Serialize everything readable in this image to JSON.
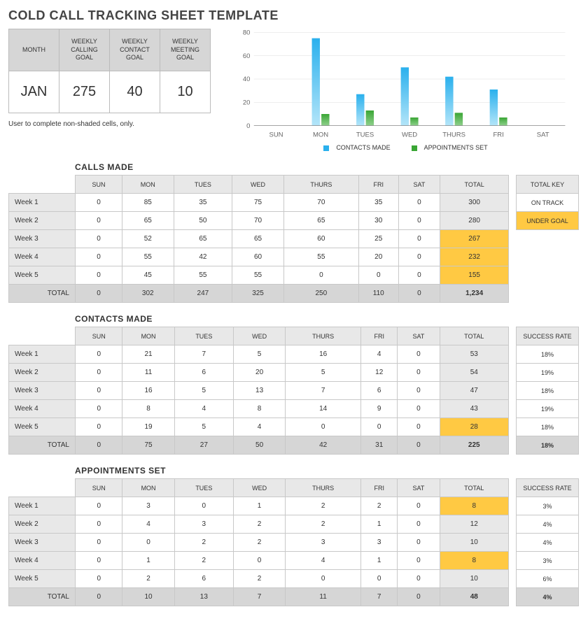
{
  "title": "COLD CALL TRACKING SHEET TEMPLATE",
  "goals": {
    "headers": [
      "MONTH",
      "WEEKLY\nCALLING\nGOAL",
      "WEEKLY\nCONTACT\nGOAL",
      "WEEKLY\nMEETING\nGOAL"
    ],
    "values": [
      "JAN",
      "275",
      "40",
      "10"
    ]
  },
  "note": "User to complete non-shaded cells, only.",
  "chart": {
    "type": "bar",
    "categories": [
      "SUN",
      "MON",
      "TUES",
      "WED",
      "THURS",
      "FRI",
      "SAT"
    ],
    "series": [
      {
        "name": "CONTACTS MADE",
        "color_top": "#2ab0ed",
        "color_bottom": "#b3e5f9",
        "values": [
          0,
          75,
          27,
          50,
          42,
          31,
          0
        ]
      },
      {
        "name": "APPOINTMENTS SET",
        "color_top": "#3aa635",
        "color_bottom": "#8fd08c",
        "values": [
          0,
          10,
          13,
          7,
          11,
          7,
          0
        ]
      }
    ],
    "ylim": [
      0,
      80
    ],
    "ytick_step": 20,
    "axis_color": "#888",
    "grid_color": "#dcdcdc",
    "label_fontsize": 9,
    "background_color": "#ffffff"
  },
  "day_headers": [
    "SUN",
    "MON",
    "TUES",
    "WED",
    "THURS",
    "FRI",
    "SAT",
    "TOTAL"
  ],
  "week_labels": [
    "Week 1",
    "Week 2",
    "Week 3",
    "Week 4",
    "Week 5"
  ],
  "total_label": "TOTAL",
  "key": {
    "title": "TOTAL KEY",
    "items": [
      {
        "label": "ON TRACK",
        "bg": "#ffffff"
      },
      {
        "label": "UNDER GOAL",
        "bg": "#ffc943"
      }
    ]
  },
  "tables": [
    {
      "title": "CALLS MADE",
      "rows": [
        {
          "cells": [
            0,
            85,
            35,
            75,
            70,
            35,
            0
          ],
          "total": 300,
          "under": false
        },
        {
          "cells": [
            0,
            65,
            50,
            70,
            65,
            30,
            0
          ],
          "total": 280,
          "under": false
        },
        {
          "cells": [
            0,
            52,
            65,
            65,
            60,
            25,
            0
          ],
          "total": 267,
          "under": true
        },
        {
          "cells": [
            0,
            55,
            42,
            60,
            55,
            20,
            0
          ],
          "total": 232,
          "under": true
        },
        {
          "cells": [
            0,
            45,
            55,
            55,
            0,
            0,
            0
          ],
          "total": 155,
          "under": true
        }
      ],
      "col_totals": [
        0,
        302,
        247,
        325,
        250,
        110,
        0
      ],
      "grand_total": "1,234",
      "side": {
        "mode": "key"
      }
    },
    {
      "title": "CONTACTS MADE",
      "rows": [
        {
          "cells": [
            0,
            21,
            7,
            5,
            16,
            4,
            0
          ],
          "total": 53,
          "under": false,
          "rate": "18%"
        },
        {
          "cells": [
            0,
            11,
            6,
            20,
            5,
            12,
            0
          ],
          "total": 54,
          "under": false,
          "rate": "19%"
        },
        {
          "cells": [
            0,
            16,
            5,
            13,
            7,
            6,
            0
          ],
          "total": 47,
          "under": false,
          "rate": "18%"
        },
        {
          "cells": [
            0,
            8,
            4,
            8,
            14,
            9,
            0
          ],
          "total": 43,
          "under": false,
          "rate": "19%"
        },
        {
          "cells": [
            0,
            19,
            5,
            4,
            0,
            0,
            0
          ],
          "total": 28,
          "under": true,
          "rate": "18%"
        }
      ],
      "col_totals": [
        0,
        75,
        27,
        50,
        42,
        31,
        0
      ],
      "grand_total": "225",
      "side": {
        "mode": "rate",
        "title": "SUCCESS RATE",
        "total": "18%"
      }
    },
    {
      "title": "APPOINTMENTS SET",
      "rows": [
        {
          "cells": [
            0,
            3,
            0,
            1,
            2,
            2,
            0
          ],
          "total": 8,
          "under": true,
          "rate": "3%"
        },
        {
          "cells": [
            0,
            4,
            3,
            2,
            2,
            1,
            0
          ],
          "total": 12,
          "under": false,
          "rate": "4%"
        },
        {
          "cells": [
            0,
            0,
            2,
            2,
            3,
            3,
            0
          ],
          "total": 10,
          "under": false,
          "rate": "4%"
        },
        {
          "cells": [
            0,
            1,
            2,
            0,
            4,
            1,
            0
          ],
          "total": 8,
          "under": true,
          "rate": "3%"
        },
        {
          "cells": [
            0,
            2,
            6,
            2,
            0,
            0,
            0
          ],
          "total": 10,
          "under": false,
          "rate": "6%"
        }
      ],
      "col_totals": [
        0,
        10,
        13,
        7,
        11,
        7,
        0
      ],
      "grand_total": "48",
      "side": {
        "mode": "rate",
        "title": "SUCCESS RATE",
        "total": "4%"
      }
    }
  ],
  "colors": {
    "header_bg": "#e8e8e8",
    "dark_bg": "#d6d6d6",
    "border": "#c8c8c8",
    "under_goal": "#ffc943"
  }
}
